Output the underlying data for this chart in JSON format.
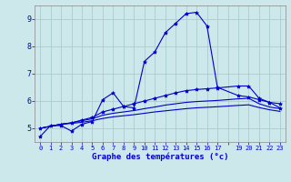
{
  "xlabel": "Graphe des températures (°c)",
  "background_color": "#cce8ea",
  "grid_color": "#aacdd0",
  "line_color": "#0000cc",
  "figsize": [
    3.2,
    2.0
  ],
  "dpi": 100,
  "xlim": [
    -0.5,
    23.5
  ],
  "ylim": [
    4.5,
    9.5
  ],
  "yticks": [
    5,
    6,
    7,
    8,
    9
  ],
  "xtick_positions": [
    0,
    1,
    2,
    3,
    4,
    5,
    6,
    7,
    8,
    9,
    10,
    11,
    12,
    13,
    14,
    15,
    16,
    17,
    18,
    19,
    20,
    21,
    22,
    23
  ],
  "xtick_labels": [
    "0",
    "1",
    "2",
    "3",
    "4",
    "5",
    "6",
    "7",
    "8",
    "9",
    "10",
    "11",
    "12",
    "13",
    "14",
    "15",
    "16",
    "17",
    "",
    "19",
    "20",
    "21",
    "22",
    "23"
  ],
  "curve1_x": [
    0,
    1,
    2,
    3,
    4,
    5,
    6,
    7,
    8,
    9,
    10,
    11,
    12,
    13,
    14,
    15,
    16,
    17,
    19,
    20,
    21,
    22,
    23
  ],
  "curve1_y": [
    4.7,
    5.1,
    5.1,
    4.9,
    5.15,
    5.25,
    6.05,
    6.3,
    5.8,
    5.75,
    7.45,
    7.8,
    8.5,
    8.85,
    9.2,
    9.25,
    8.75,
    6.5,
    6.2,
    6.15,
    6.05,
    5.95,
    5.75
  ],
  "curve2_x": [
    0,
    2,
    3,
    4,
    5,
    6,
    7,
    8,
    9,
    10,
    11,
    12,
    13,
    14,
    15,
    16,
    17,
    19,
    20,
    21,
    22,
    23
  ],
  "curve2_y": [
    5.0,
    5.15,
    5.2,
    5.3,
    5.4,
    5.6,
    5.7,
    5.8,
    5.9,
    6.0,
    6.1,
    6.2,
    6.3,
    6.38,
    6.42,
    6.45,
    6.48,
    6.55,
    6.55,
    6.1,
    5.95,
    5.9
  ],
  "curve3_x": [
    0,
    2,
    3,
    4,
    5,
    6,
    7,
    8,
    9,
    10,
    11,
    12,
    13,
    14,
    15,
    16,
    17,
    19,
    20,
    21,
    22,
    23
  ],
  "curve3_y": [
    5.0,
    5.15,
    5.2,
    5.28,
    5.35,
    5.48,
    5.55,
    5.6,
    5.65,
    5.72,
    5.78,
    5.85,
    5.9,
    5.95,
    5.98,
    6.0,
    6.02,
    6.08,
    6.1,
    5.9,
    5.78,
    5.72
  ],
  "curve4_x": [
    0,
    2,
    3,
    4,
    5,
    6,
    7,
    8,
    9,
    10,
    11,
    12,
    13,
    14,
    15,
    16,
    17,
    19,
    20,
    21,
    22,
    23
  ],
  "curve4_y": [
    5.0,
    5.15,
    5.18,
    5.22,
    5.28,
    5.36,
    5.42,
    5.46,
    5.5,
    5.55,
    5.6,
    5.64,
    5.68,
    5.72,
    5.75,
    5.77,
    5.79,
    5.84,
    5.86,
    5.76,
    5.68,
    5.62
  ]
}
